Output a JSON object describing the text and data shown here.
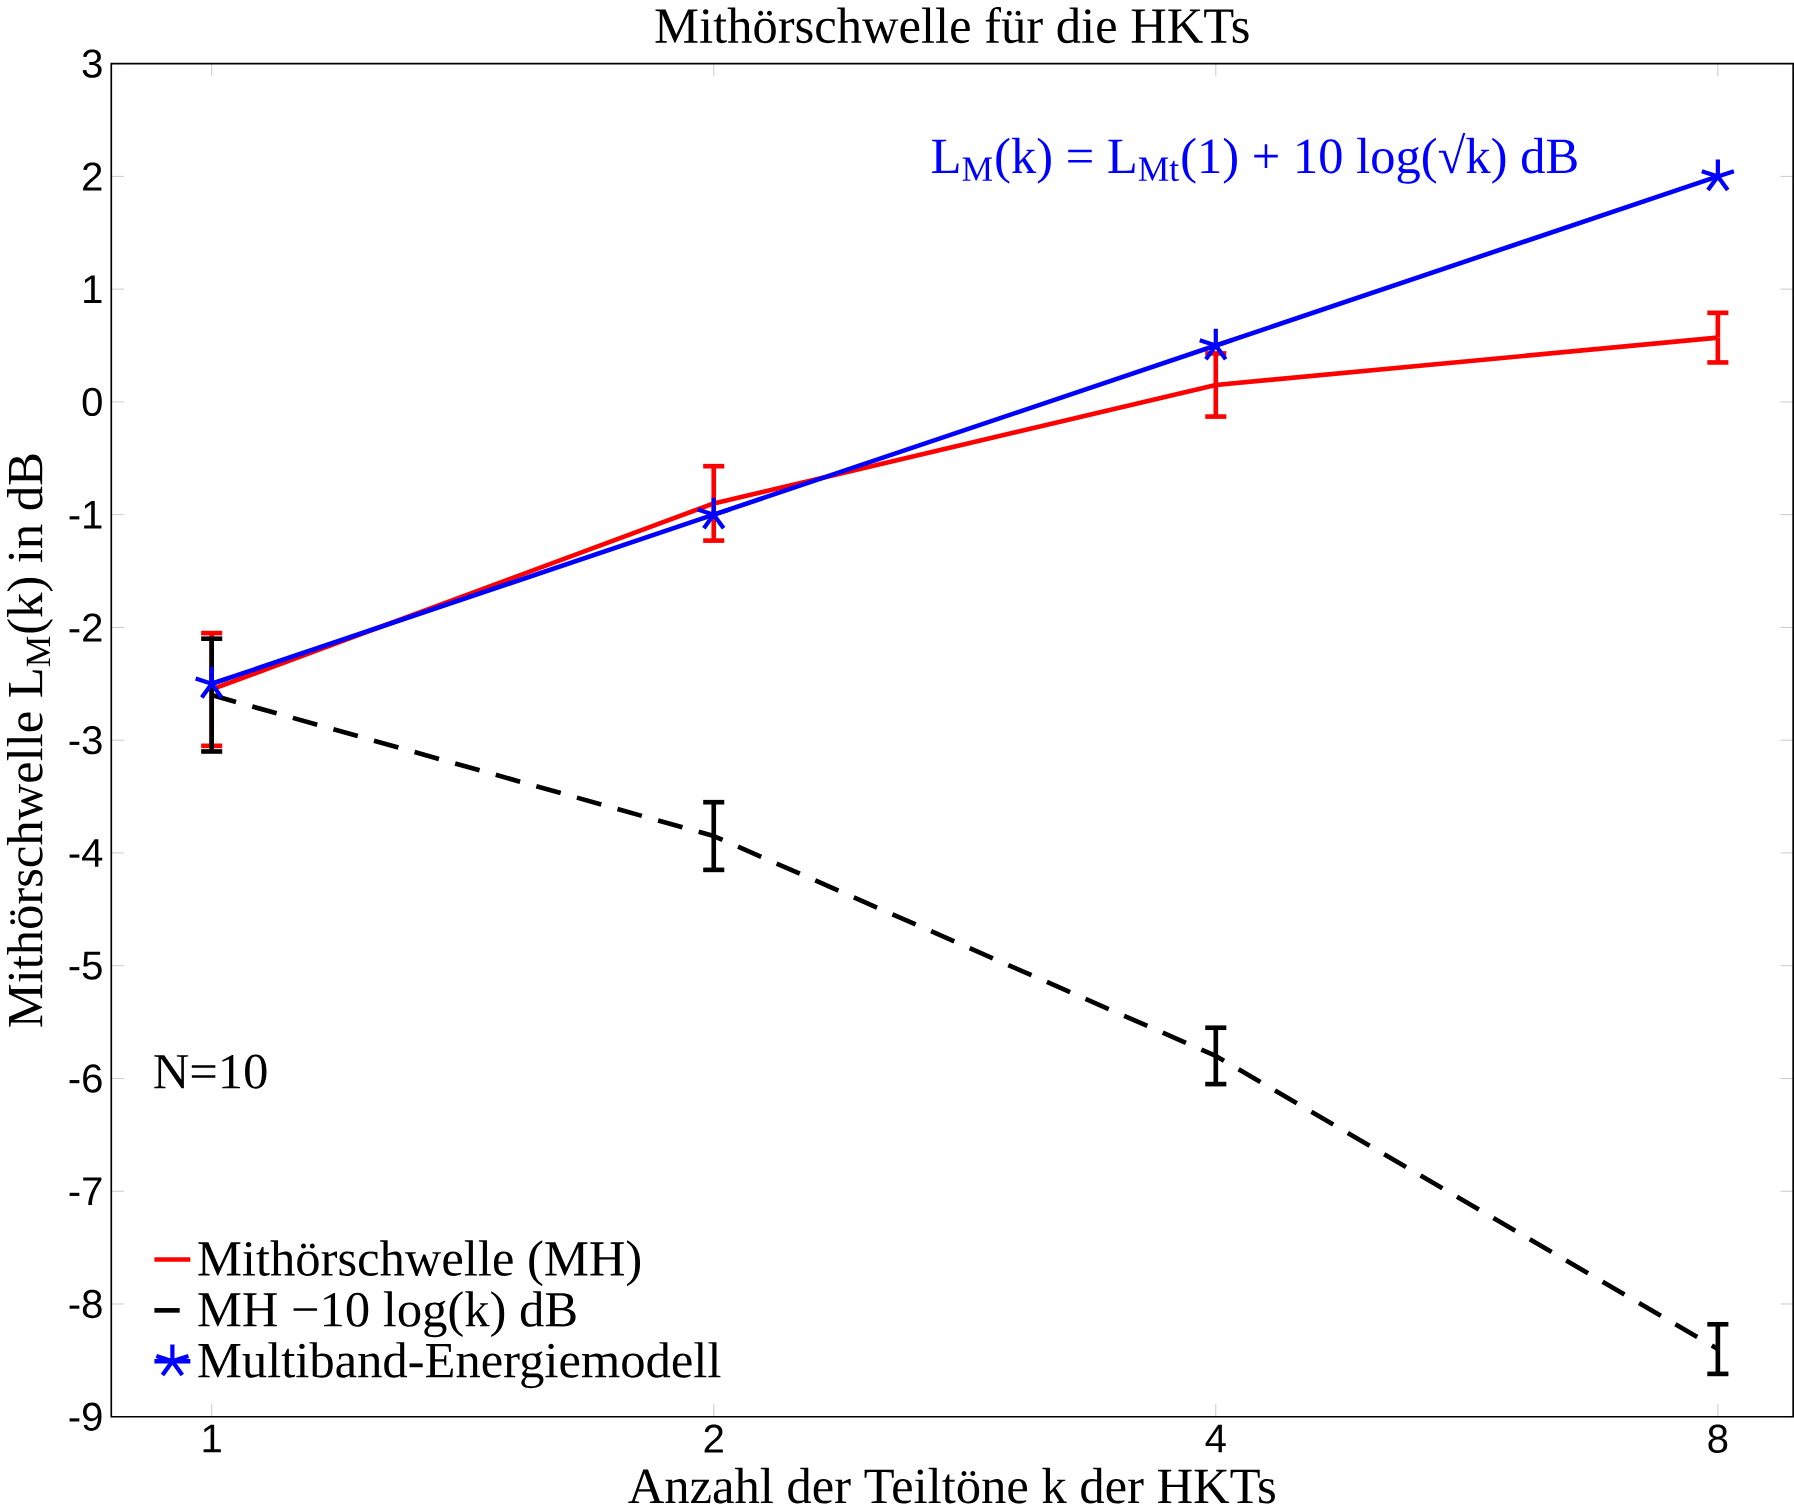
{
  "chart_data": {
    "type": "line",
    "title": "Mithörschwelle für die HKTs",
    "xlabel": "Anzahl der Teiltöne k der HKTs",
    "ylabel": "Mithörschwelle L$_{M}$(k) in dB",
    "categories": [
      "1",
      "2",
      "4",
      "8"
    ],
    "series": [
      {
        "name": "Mithörschwelle (MH)",
        "color": "#ff0000",
        "values": [
          -2.55,
          -0.9,
          0.15,
          0.57
        ],
        "errors": [
          0.5,
          0.33,
          0.28,
          0.22
        ],
        "line_style": "solid",
        "marker": "none"
      },
      {
        "name": "MH −10 log(k) dB",
        "color": "#000000",
        "values": [
          -2.6,
          -3.85,
          -5.8,
          -8.4
        ],
        "errors": [
          0.5,
          0.3,
          0.25,
          0.22
        ],
        "line_style": "dashed",
        "marker": "none"
      },
      {
        "name": "Multiband-Energiemodell",
        "color": "#0000ff",
        "values": [
          -2.5,
          -1.0,
          0.5,
          2.0
        ],
        "line_style": "solid",
        "marker": "cross"
      }
    ],
    "ylim": [
      -9,
      3
    ],
    "yticks": [
      -9,
      -8,
      -7,
      -6,
      -5,
      -4,
      -3,
      -2,
      -1,
      0,
      1,
      2,
      3
    ],
    "legend": "bottom left",
    "annotations": [
      "L$_{M}$(k) = L$_{Mt}$(1) + 10 log(√k) dB",
      "N=10"
    ]
  }
}
